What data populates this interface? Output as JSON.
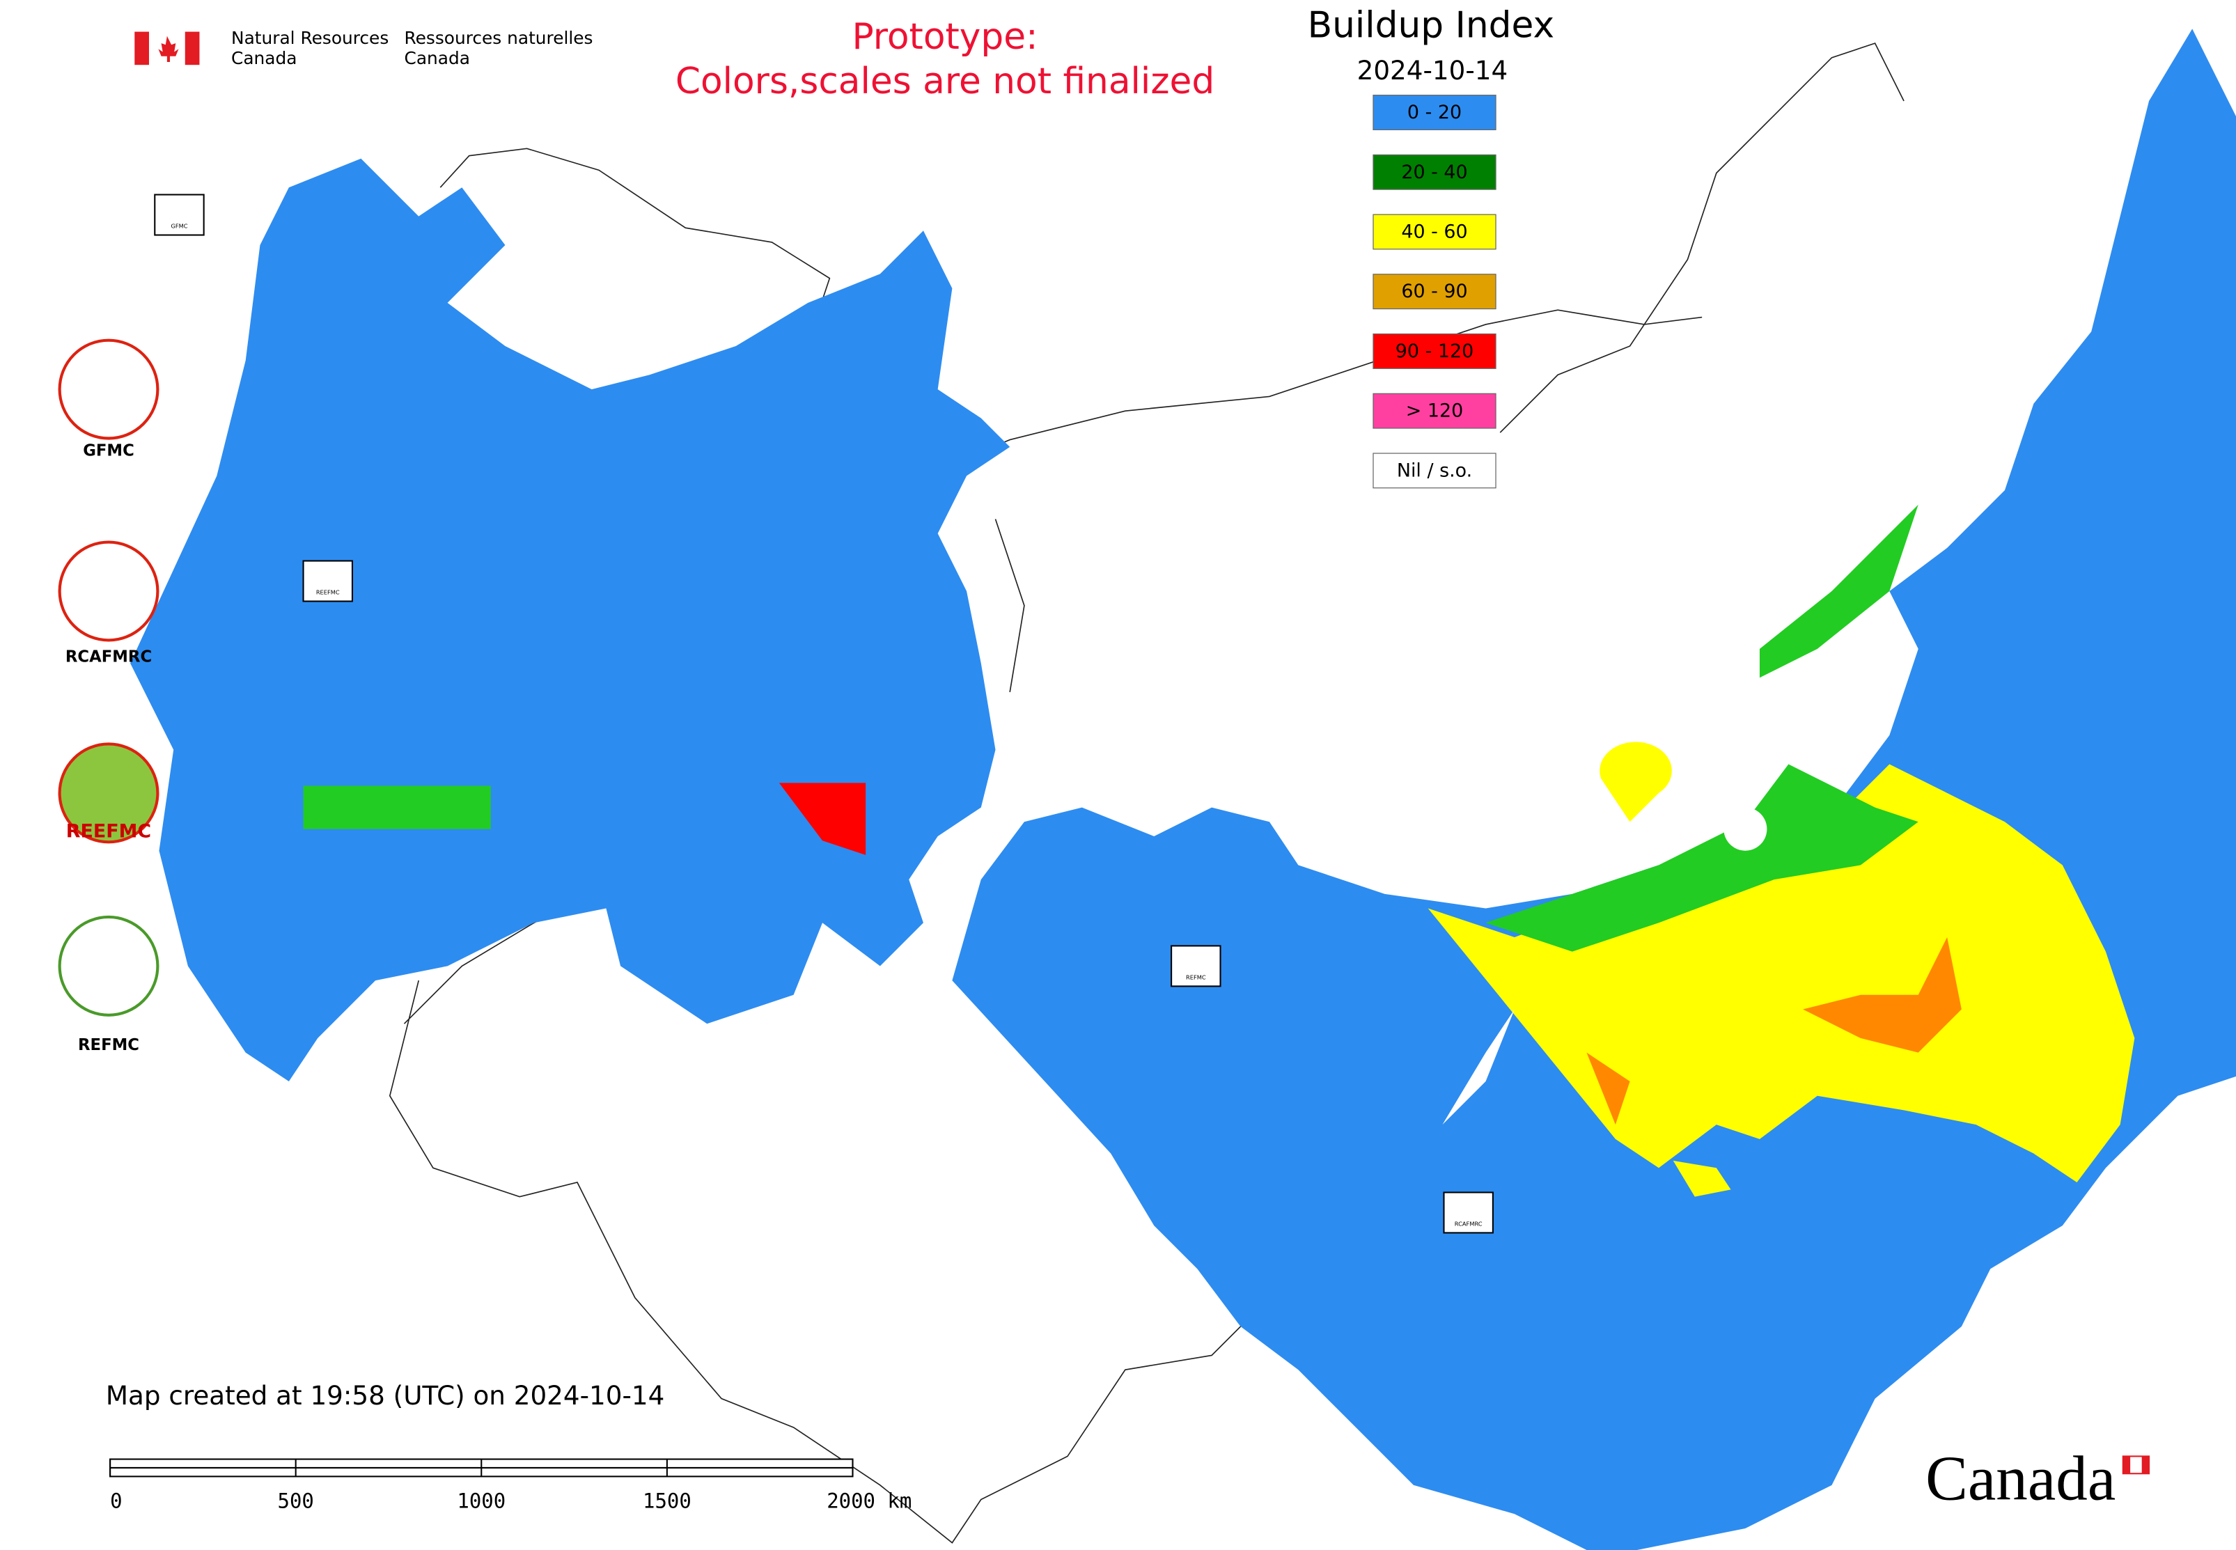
{
  "header": {
    "agency_en": [
      "Natural Resources",
      "Canada"
    ],
    "agency_fr": [
      "Ressources naturelles",
      "Canada"
    ]
  },
  "notice": [
    "Prototype:",
    "Colors,scales are not finalized"
  ],
  "title": "Buildup Index",
  "date": "2024-10-14",
  "legend": [
    {
      "label": "0 - 20",
      "color": "#2d8cf0"
    },
    {
      "label": "20 - 40",
      "color": "#008000"
    },
    {
      "label": "40 - 60",
      "color": "#ffff00"
    },
    {
      "label": "60 - 90",
      "color": "#e0a000"
    },
    {
      "label": "90 - 120",
      "color": "#ff0000"
    },
    {
      "label": "> 120",
      "color": "#ff40a0"
    },
    {
      "label": "Nil / s.o.",
      "color": "#ffffff"
    }
  ],
  "logos": [
    "GFMC",
    "RCAFMRC",
    "REEFMC",
    "REFMC"
  ],
  "map_markers": [
    "GFMC",
    "REEFMC",
    "REFMC",
    "RCAFMRC"
  ],
  "footer": "Map created at 19:58 (UTC) on 2024-10-14",
  "scale_bar": [
    "0",
    "500",
    "1000",
    "1500",
    "2000 km"
  ],
  "wordmark": "Canada"
}
